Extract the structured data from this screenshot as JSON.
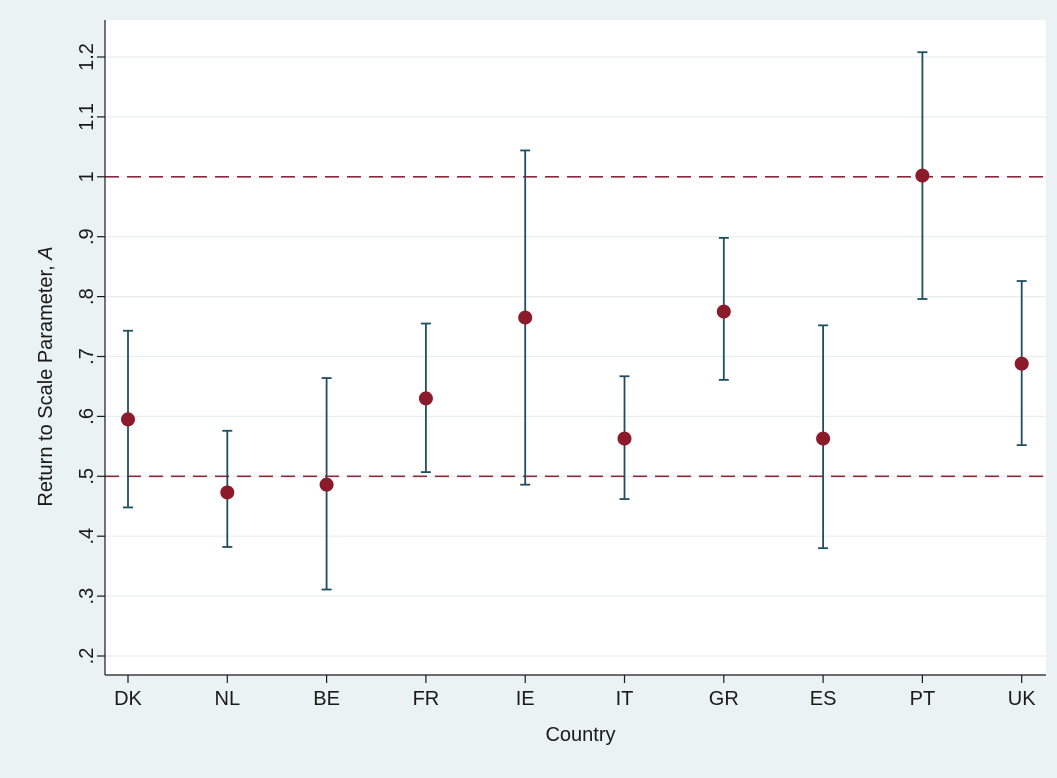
{
  "chart_data": {
    "type": "scatter",
    "title": "",
    "xlabel": "Country",
    "ylabel": "Return to Scale Parameter, ",
    "ylabel_italic": "A",
    "ylim": [
      0.2,
      1.2
    ],
    "yticks": [
      0.2,
      0.3,
      0.4,
      0.5,
      0.6,
      0.7,
      0.8,
      0.9,
      1.0,
      1.1,
      1.2
    ],
    "ytick_labels": [
      ".2",
      ".3",
      ".4",
      ".5",
      ".6",
      ".7",
      ".8",
      ".9",
      "1",
      "1.1",
      "1.2"
    ],
    "grid": true,
    "categories": [
      "DK",
      "NL",
      "BE",
      "FR",
      "IE",
      "IT",
      "GR",
      "ES",
      "PT",
      "UK"
    ],
    "estimates": [
      0.595,
      0.473,
      0.486,
      0.63,
      0.765,
      0.563,
      0.775,
      0.563,
      1.002,
      0.688
    ],
    "ci_lower": [
      0.448,
      0.382,
      0.311,
      0.507,
      0.486,
      0.462,
      0.661,
      0.38,
      0.796,
      0.552
    ],
    "ci_upper": [
      0.743,
      0.576,
      0.664,
      0.755,
      1.044,
      0.667,
      0.898,
      0.752,
      1.208,
      0.826
    ],
    "reference_lines": [
      0.5,
      1.0
    ],
    "colors": {
      "background": "#eaf2f3",
      "plot_area": "#ffffff",
      "point": "#8b1a2b",
      "error_bar": "#1f4e5f",
      "reference_line": "#8b2a3a",
      "grid": "#e8eef0"
    }
  }
}
